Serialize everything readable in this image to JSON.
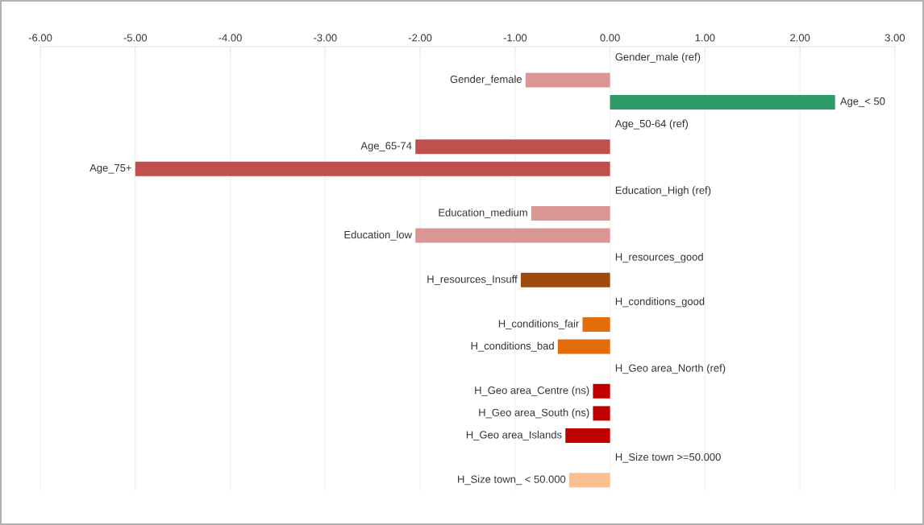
{
  "chart_data": {
    "type": "bar",
    "orientation": "horizontal",
    "categories": [
      "Gender_male (ref)",
      "Gender_female",
      "Age_< 50",
      "Age_50-64 (ref)",
      "Age_65-74",
      "Age_75+",
      "Education_High (ref)",
      "Education_medium",
      "Education_low",
      "H_resources_good",
      "H_resources_Insuff",
      "H_conditions_good",
      "H_conditions_fair",
      "H_conditions_bad",
      "H_Geo area_North (ref)",
      "H_Geo area_Centre (ns)",
      "H_Geo area_South (ns)",
      "H_Geo area_Islands",
      "H_Size town >=50.000",
      "H_Size town_ < 50.000"
    ],
    "values": [
      null,
      -0.89,
      2.37,
      null,
      -2.05,
      -5.0,
      null,
      -0.83,
      -2.05,
      null,
      -0.94,
      null,
      -0.29,
      -0.55,
      null,
      -0.18,
      -0.18,
      -0.47,
      null,
      -0.43
    ],
    "colors": [
      "#d99694",
      "#d99694",
      "#2e9b68",
      "#c0504d",
      "#c0504d",
      "#c0504d",
      "#d99694",
      "#d99694",
      "#d99694",
      "#9c4a0e",
      "#9c4a0e",
      "#e46c0a",
      "#e46c0a",
      "#e46c0a",
      "#c00000",
      "#c00000",
      "#c00000",
      "#c00000",
      "#fac090",
      "#fac090"
    ],
    "xlim": [
      -6,
      3
    ],
    "xticks": [
      {
        "value": -6,
        "label": "-6.00"
      },
      {
        "value": -5,
        "label": "-5.00"
      },
      {
        "value": -4,
        "label": "-4.00"
      },
      {
        "value": -3,
        "label": "-3.00"
      },
      {
        "value": -2,
        "label": "-2.00"
      },
      {
        "value": -1,
        "label": "-1.00"
      },
      {
        "value": 0,
        "label": "0.00"
      },
      {
        "value": 1,
        "label": "1.00"
      },
      {
        "value": 2,
        "label": "2.00"
      },
      {
        "value": 3,
        "label": "3.00"
      }
    ],
    "grid": "x"
  }
}
